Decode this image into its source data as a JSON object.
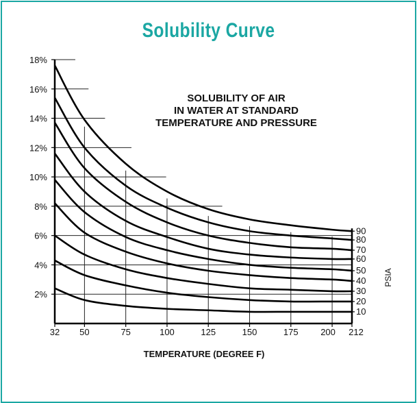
{
  "header": {
    "title": "Solubility Curve"
  },
  "chart_data": {
    "type": "line",
    "subtitle_lines": [
      "SOLUBILITY OF AIR",
      "IN WATER AT STANDARD",
      "TEMPERATURE AND PRESSURE"
    ],
    "xlabel": "TEMPERATURE (DEGREE F)",
    "series_axis_label": "PSIA",
    "x_ticks": [
      32,
      50,
      75,
      100,
      125,
      150,
      175,
      200,
      212
    ],
    "y_ticks": [
      2,
      4,
      6,
      8,
      10,
      12,
      14,
      16,
      18
    ],
    "y_tick_labels": [
      "2%",
      "4%",
      "6%",
      "8%",
      "10%",
      "12%",
      "14%",
      "16%",
      "18%"
    ],
    "xlim": [
      32,
      212
    ],
    "ylim": [
      0,
      18
    ],
    "grid": true,
    "x": [
      32,
      50,
      75,
      100,
      125,
      150,
      175,
      200,
      212
    ],
    "series": [
      {
        "name": "10",
        "values": [
          2.4,
          1.6,
          1.2,
          1.0,
          0.9,
          0.8,
          0.8,
          0.8,
          0.8
        ]
      },
      {
        "name": "20",
        "values": [
          4.3,
          3.3,
          2.6,
          2.1,
          1.8,
          1.6,
          1.5,
          1.5,
          1.5
        ]
      },
      {
        "name": "30",
        "values": [
          6.0,
          4.7,
          3.7,
          3.1,
          2.7,
          2.4,
          2.3,
          2.2,
          2.2
        ]
      },
      {
        "name": "40",
        "values": [
          8.2,
          6.2,
          4.9,
          4.1,
          3.6,
          3.3,
          3.1,
          3.0,
          2.9
        ]
      },
      {
        "name": "50",
        "values": [
          9.8,
          7.6,
          5.9,
          5.0,
          4.4,
          4.0,
          3.8,
          3.7,
          3.6
        ]
      },
      {
        "name": "60",
        "values": [
          11.6,
          9.0,
          7.0,
          5.9,
          5.1,
          4.7,
          4.5,
          4.4,
          4.4
        ]
      },
      {
        "name": "70",
        "values": [
          13.7,
          10.6,
          8.3,
          6.9,
          6.0,
          5.5,
          5.2,
          5.1,
          5.0
        ]
      },
      {
        "name": "80",
        "values": [
          15.4,
          12.0,
          9.4,
          7.9,
          6.9,
          6.3,
          6.0,
          5.8,
          5.7
        ]
      },
      {
        "name": "90",
        "values": [
          17.6,
          13.9,
          10.9,
          9.0,
          7.8,
          7.1,
          6.7,
          6.4,
          6.3
        ]
      }
    ]
  }
}
